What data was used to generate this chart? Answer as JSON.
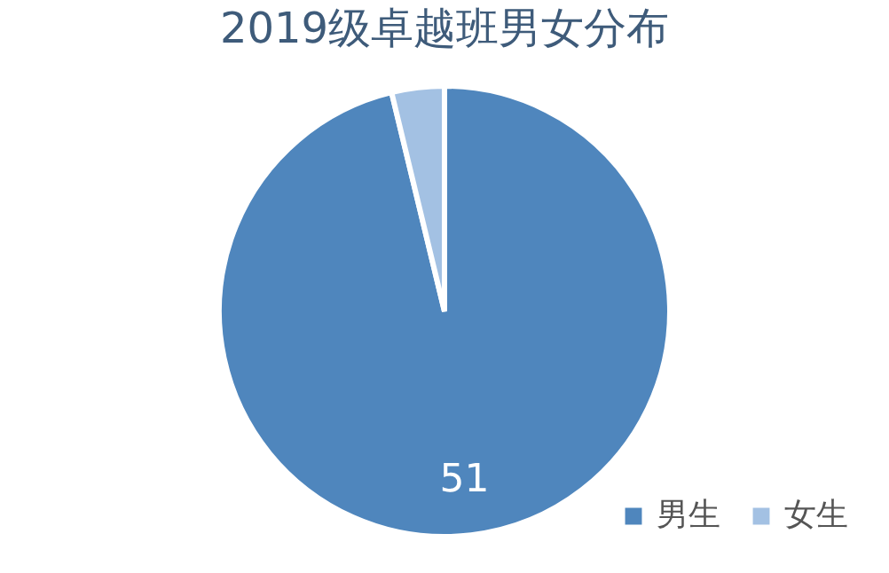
{
  "chart_data": {
    "type": "pie",
    "title": "2019级卓越班男女分布",
    "categories": [
      "男生",
      "女生"
    ],
    "values": [
      51,
      2
    ],
    "colors": [
      "#4f86bd",
      "#a3c1e3"
    ],
    "value_labels": [
      "51",
      null
    ],
    "legend": "bottom right"
  }
}
